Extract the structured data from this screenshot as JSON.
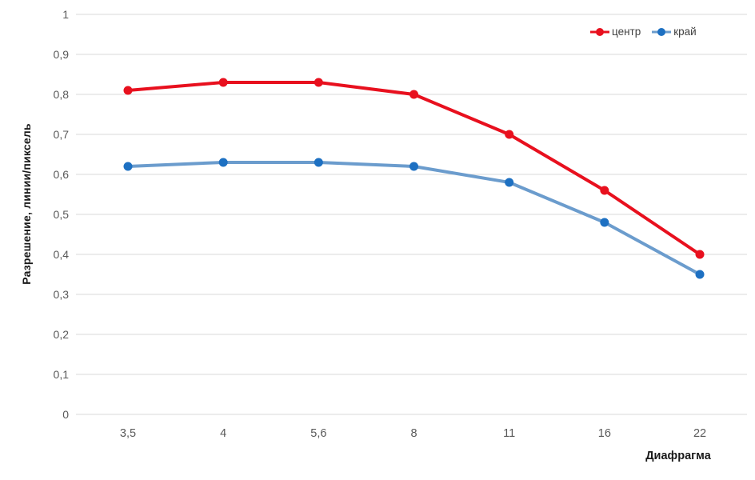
{
  "chart_data": {
    "type": "line",
    "title": "",
    "xlabel": "Диафрагма",
    "ylabel": "Разрешение, линии/пиксель",
    "x": [
      "3,5",
      "4",
      "5,6",
      "8",
      "11",
      "16",
      "22"
    ],
    "series": [
      {
        "name": "центр",
        "values": [
          0.81,
          0.83,
          0.83,
          0.8,
          0.7,
          0.56,
          0.4
        ],
        "color": "#e8101e",
        "marker_color": "#e8101e"
      },
      {
        "name": "край",
        "values": [
          0.62,
          0.63,
          0.63,
          0.62,
          0.58,
          0.48,
          0.35
        ],
        "color": "#6b9ccd",
        "marker_color": "#1d70c2"
      }
    ],
    "ylim": [
      0,
      1
    ],
    "ytick_step": 0.1,
    "ytick_labels": [
      "0",
      "0,1",
      "0,2",
      "0,3",
      "0,4",
      "0,5",
      "0,6",
      "0,7",
      "0,8",
      "0,9",
      "1"
    ],
    "grid": true,
    "legend_position": "top-right",
    "colors": {
      "background": "#ffffff",
      "grid": "#d9d9d9",
      "tick_text": "#595959",
      "axis_title_text": "#1a1a1a",
      "legend_text": "#404040"
    }
  }
}
